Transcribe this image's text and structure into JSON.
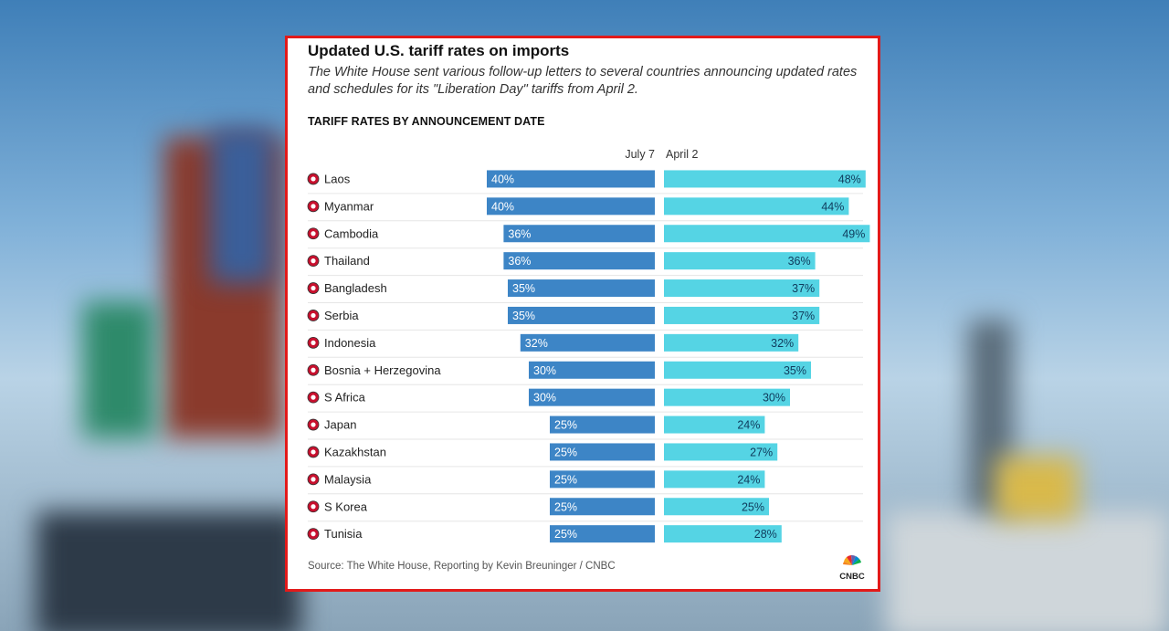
{
  "card": {
    "title": "Updated U.S. tariff rates on imports",
    "subtitle": "The White House sent various follow-up letters to several countries announcing updated rates and schedules for its \"Liberation Day\" tariffs from April 2.",
    "section_title": "TARIFF RATES BY ANNOUNCEMENT DATE",
    "source": "Source: The White House, Reporting by Kevin Breuninger / CNBC",
    "logo_text": "CNBC"
  },
  "colors": {
    "july7": "#3d85c6",
    "april2": "#55d4e4",
    "border": "#e21a1a"
  },
  "chart_data": {
    "type": "bar",
    "title": "TARIFF RATES BY ANNOUNCEMENT DATE",
    "categories": [
      "Laos",
      "Myanmar",
      "Cambodia",
      "Thailand",
      "Bangladesh",
      "Serbia",
      "Indonesia",
      "Bosnia + Herzegovina",
      "S Africa",
      "Japan",
      "Kazakhstan",
      "Malaysia",
      "S Korea",
      "Tunisia"
    ],
    "series": [
      {
        "name": "July 7",
        "values": [
          40,
          40,
          36,
          36,
          35,
          35,
          32,
          30,
          30,
          25,
          25,
          25,
          25,
          25
        ]
      },
      {
        "name": "April 2",
        "values": [
          48,
          44,
          49,
          36,
          37,
          37,
          32,
          35,
          30,
          24,
          27,
          24,
          25,
          28
        ]
      }
    ],
    "value_suffix": "%",
    "orientation": "horizontal",
    "grid": false
  }
}
